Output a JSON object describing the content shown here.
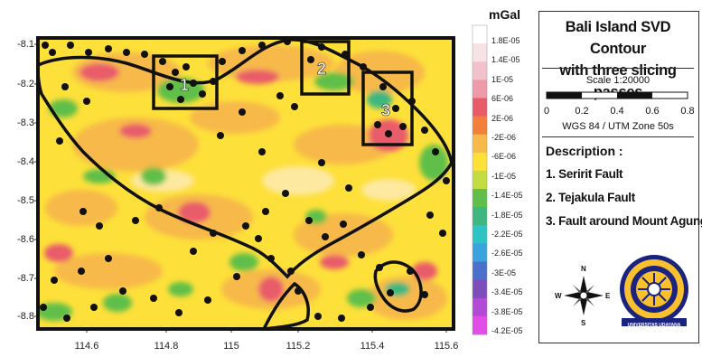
{
  "map": {
    "y_ticks": [
      "-8.1",
      "-8.2",
      "-8.3",
      "-8.4",
      "-8.5",
      "-8.6",
      "-8.7",
      "-8.8"
    ],
    "x_ticks": [
      "114.6",
      "114.8",
      "115",
      "115.2",
      "115.4",
      "115.6"
    ],
    "passes": [
      {
        "label": "1"
      },
      {
        "label": "2"
      },
      {
        "label": "3"
      }
    ]
  },
  "colorbar": {
    "unit": "mGal",
    "labels": [
      "1.8E-05",
      "1.4E-05",
      "1E-05",
      "6E-06",
      "2E-06",
      "-2E-06",
      "-6E-06",
      "-1E-05",
      "-1.4E-05",
      "-1.8E-05",
      "-2.2E-05",
      "-2.6E-05",
      "-3E-05",
      "-3.4E-05",
      "-3.8E-05",
      "-4.2E-05"
    ],
    "colors": [
      "#ffffff",
      "#f7e2e6",
      "#f2c2cc",
      "#ee9aa9",
      "#e95b6a",
      "#f2803a",
      "#f7b94a",
      "#fde03a",
      "#c3dc3f",
      "#5fbf4a",
      "#3db77f",
      "#2fc4c4",
      "#3aa2de",
      "#4b70cc",
      "#7c4dbb",
      "#b14ad6",
      "#e24de7"
    ]
  },
  "legend": {
    "title_line1": "Bali Island SVD Contour",
    "title_line2": "with three slicing passes",
    "scale": "Scale 1:20000",
    "scale_ticks": [
      "0",
      "0.2",
      "0.4",
      "0.6",
      "0.8"
    ],
    "projection": "WGS 84 / UTM Zone 50s",
    "description_heading": "Description :",
    "items": [
      "1. Seririt Fault",
      "2. Tejakula Fault",
      "3. Fault around Mount Agung"
    ],
    "compass": {
      "n": "N",
      "s": "S",
      "e": "E",
      "w": "W"
    },
    "university": "UNIVERSITAS UDAYANA"
  }
}
